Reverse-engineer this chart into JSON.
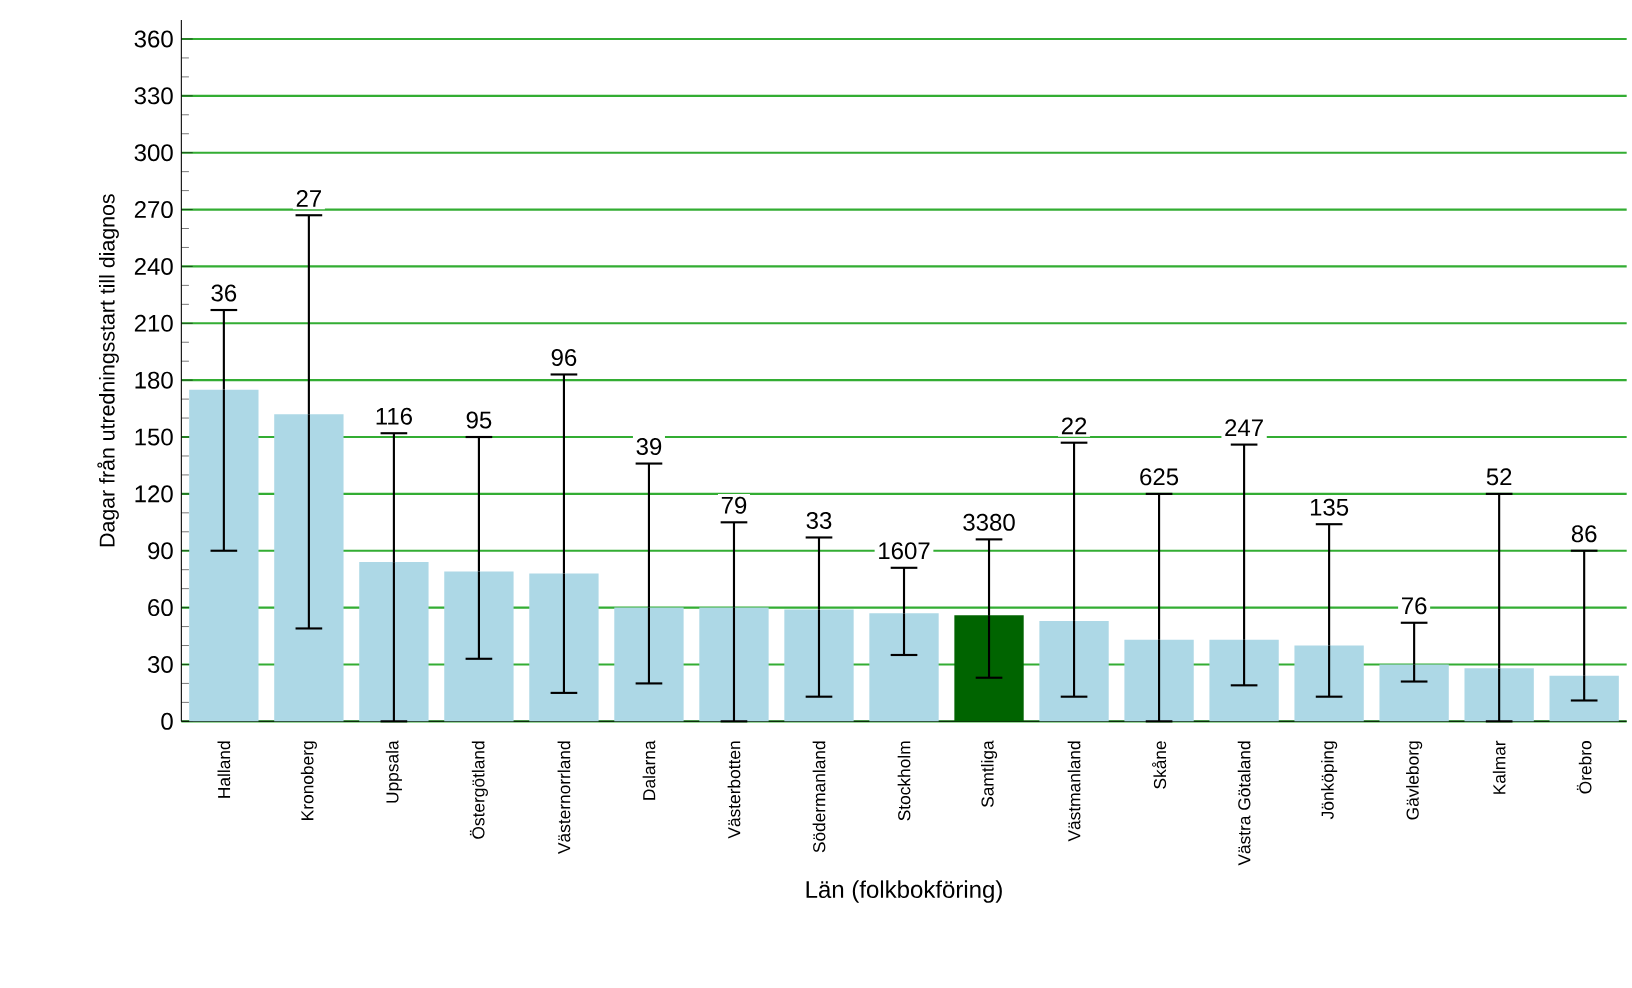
{
  "chart_data": {
    "type": "bar",
    "xlabel": "Län (folkbokföring)",
    "ylabel": "Dagar från utredningsstart till diagnos",
    "categories": [
      "Halland",
      "Kronoberg",
      "Uppsala",
      "Östergötland",
      "Västernorrland",
      "Dalarna",
      "Västerbotten",
      "Södermanland",
      "Stockholm",
      "Samtliga",
      "Västmanland",
      "Skåne",
      "Västra Götaland",
      "Jönköping",
      "Gävleborg",
      "Kalmar",
      "Örebro"
    ],
    "values": [
      175,
      162,
      84,
      79,
      78,
      60,
      60,
      59,
      57,
      56,
      53,
      43,
      43,
      40,
      30,
      28,
      24
    ],
    "errors": [
      [
        90,
        217
      ],
      [
        49,
        267
      ],
      [
        0,
        152
      ],
      [
        33,
        150
      ],
      [
        15,
        183
      ],
      [
        20,
        136
      ],
      [
        0,
        105
      ],
      [
        13,
        97
      ],
      [
        35,
        81
      ],
      [
        23,
        96
      ],
      [
        13,
        147
      ],
      [
        0,
        120
      ],
      [
        19,
        146
      ],
      [
        13,
        104
      ],
      [
        21,
        52
      ],
      [
        0,
        120
      ],
      [
        11,
        90
      ]
    ],
    "colors": [
      "#add8e6",
      "#add8e6",
      "#add8e6",
      "#add8e6",
      "#add8e6",
      "#add8e6",
      "#add8e6",
      "#add8e6",
      "#add8e6",
      "#006400",
      "#add8e6",
      "#add8e6",
      "#add8e6",
      "#add8e6",
      "#add8e6",
      "#add8e6",
      "#add8e6"
    ],
    "annotations": [
      {
        "text": "36",
        "x": "Halland",
        "y": 217
      },
      {
        "text": "27",
        "x": "Kronoberg",
        "y": 267
      },
      {
        "text": "116",
        "x": "Uppsala",
        "y": 152
      },
      {
        "text": "95",
        "x": "Östergötland",
        "y": 150
      },
      {
        "text": "96",
        "x": "Västernorrland",
        "y": 183
      },
      {
        "text": "39",
        "x": "Dalarna",
        "y": 136
      },
      {
        "text": "79",
        "x": "Västerbotten",
        "y": 105
      },
      {
        "text": "33",
        "x": "Södermanland",
        "y": 97
      },
      {
        "text": "1607",
        "x": "Stockholm",
        "y": 81
      },
      {
        "text": "3380",
        "x": "Samtliga",
        "y": 96
      },
      {
        "text": "22",
        "x": "Västmanland",
        "y": 147
      },
      {
        "text": "625",
        "x": "Skåne",
        "y": 120
      },
      {
        "text": "247",
        "x": "Västra Götaland",
        "y": 146
      },
      {
        "text": "135",
        "x": "Jönköping",
        "y": 104
      },
      {
        "text": "76",
        "x": "Gävleborg",
        "y": 52
      },
      {
        "text": "52",
        "x": "Kalmar",
        "y": 120
      },
      {
        "text": "86",
        "x": "Örebro",
        "y": 90
      }
    ],
    "ylim": [
      0,
      370
    ],
    "yticks": [
      0,
      30,
      60,
      90,
      120,
      150,
      180,
      210,
      240,
      270,
      300,
      330,
      360
    ],
    "grid": "y"
  }
}
